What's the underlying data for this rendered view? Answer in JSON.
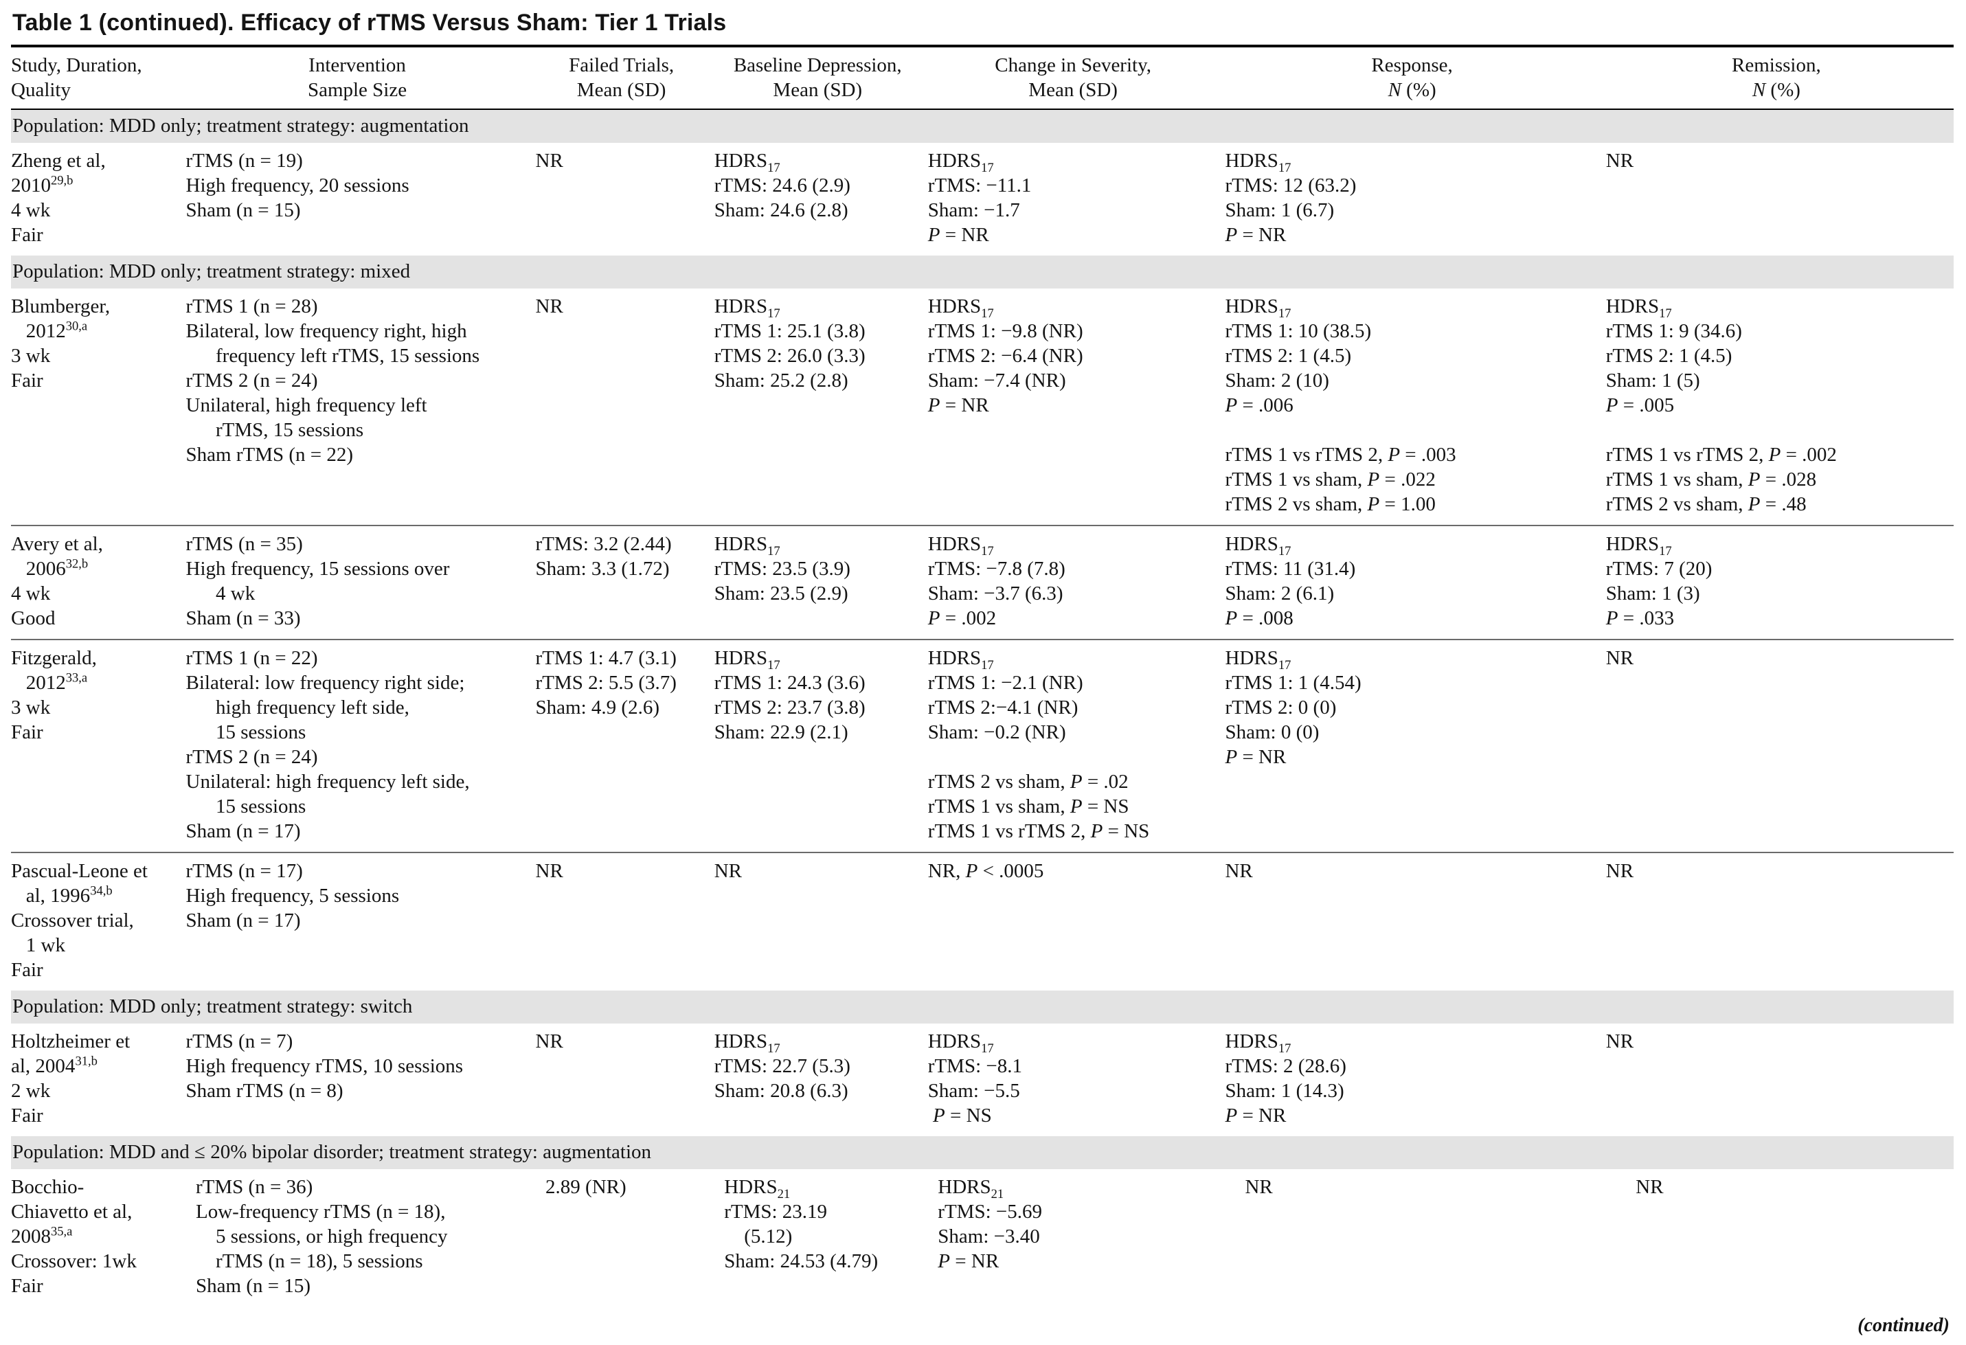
{
  "title": "Table 1 (continued). Efficacy of rTMS Versus Sham: Tier 1 Trials",
  "footer_note": "(continued)",
  "section_bg": "#e3e3e3",
  "columns": [
    {
      "key": "study",
      "lines": [
        "Study, Duration,",
        "Quality"
      ],
      "align": "left",
      "width": "9.0%"
    },
    {
      "key": "intervention",
      "lines": [
        "Intervention",
        "Sample Size"
      ],
      "align": "center",
      "width": "18.0%"
    },
    {
      "key": "failed_trials",
      "lines": [
        "Failed Trials,",
        "Mean (SD)"
      ],
      "align": "center",
      "width": "9.2%"
    },
    {
      "key": "baseline",
      "lines": [
        "Baseline Depression,",
        "Mean (SD)"
      ],
      "align": "center",
      "width": "11.0%"
    },
    {
      "key": "change",
      "lines": [
        "Change in Severity,",
        "Mean (SD)"
      ],
      "align": "center",
      "width": "15.3%"
    },
    {
      "key": "response",
      "lines": [
        "Response,",
        "*N* (%)"
      ],
      "align": "center",
      "width": "19.6%"
    },
    {
      "key": "remission",
      "lines": [
        "Remission,",
        "*N* (%)"
      ],
      "align": "center",
      "width": "17.9%"
    }
  ],
  "rows": [
    {
      "type": "section",
      "label": "Population: MDD only; treatment strategy: augmentation"
    },
    {
      "type": "study",
      "cells": {
        "study": [
          "Zheng et al,",
          "2010^{29,b}",
          "4 wk",
          "Fair"
        ],
        "intervention": [
          "rTMS (n = 19)",
          "High frequency, 20 sessions",
          "Sham (n = 15)"
        ],
        "failed_trials": [
          "NR"
        ],
        "baseline": [
          "HDRS_{17}",
          "rTMS: 24.6 (2.9)",
          "Sham: 24.6 (2.8)"
        ],
        "change": [
          "HDRS_{17}",
          "rTMS: −11.1",
          "Sham: −1.7",
          "*P* = NR"
        ],
        "response": [
          "HDRS_{17}",
          "rTMS: 12 (63.2)",
          "Sham: 1 (6.7)",
          "*P* = NR"
        ],
        "remission": [
          "NR"
        ]
      }
    },
    {
      "type": "section",
      "label": "Population: MDD only; treatment strategy: mixed"
    },
    {
      "type": "study",
      "cells": {
        "study": [
          "Blumberger,",
          "   2012^{30,a}",
          "3 wk",
          "Fair"
        ],
        "intervention": [
          "rTMS 1 (n = 28)",
          "Bilateral, low frequency right, high",
          "      frequency left rTMS, 15 sessions",
          "rTMS 2 (n = 24)",
          "Unilateral, high frequency left",
          "      rTMS, 15 sessions",
          "Sham rTMS (n = 22)"
        ],
        "failed_trials": [
          "NR"
        ],
        "baseline": [
          "HDRS_{17}",
          "rTMS 1: 25.1 (3.8)",
          "rTMS 2: 26.0 (3.3)",
          "Sham: 25.2 (2.8)"
        ],
        "change": [
          "HDRS_{17}",
          "rTMS 1: −9.8 (NR)",
          "rTMS 2: −6.4 (NR)",
          "Sham: −7.4 (NR)",
          "*P* = NR"
        ],
        "response": [
          "HDRS_{17}",
          "rTMS 1: 10 (38.5)",
          "rTMS 2: 1 (4.5)",
          "Sham: 2 (10)",
          "*P* = .006",
          "",
          "rTMS 1 vs rTMS 2, *P* = .003",
          "rTMS 1 vs sham, *P* = .022",
          "rTMS 2 vs sham, *P* = 1.00"
        ],
        "remission": [
          "HDRS_{17}",
          "rTMS 1: 9 (34.6)",
          "rTMS 2: 1 (4.5)",
          "Sham: 1 (5)",
          "*P* = .005",
          "",
          "rTMS 1 vs rTMS 2, *P* = .002",
          "rTMS 1 vs sham, *P* = .028",
          "rTMS 2 vs sham, *P* = .48"
        ]
      }
    },
    {
      "type": "study",
      "cells": {
        "study": [
          "Avery et al,",
          "   2006^{32,b}",
          "4 wk",
          "Good"
        ],
        "intervention": [
          "rTMS (n = 35)",
          "High frequency, 15 sessions over",
          "      4 wk",
          "Sham (n = 33)"
        ],
        "failed_trials": [
          "rTMS: 3.2 (2.44)",
          "Sham: 3.3 (1.72)"
        ],
        "baseline": [
          "HDRS_{17}",
          "rTMS: 23.5 (3.9)",
          "Sham: 23.5 (2.9)"
        ],
        "change": [
          "HDRS_{17}",
          "rTMS: −7.8 (7.8)",
          "Sham: −3.7 (6.3)",
          "*P* = .002"
        ],
        "response": [
          "HDRS_{17}",
          "rTMS: 11 (31.4)",
          "Sham: 2 (6.1)",
          "*P* = .008"
        ],
        "remission": [
          "HDRS_{17}",
          "rTMS: 7 (20)",
          "Sham: 1 (3)",
          "*P* = .033"
        ]
      }
    },
    {
      "type": "study",
      "cells": {
        "study": [
          "Fitzgerald,",
          "   2012^{33,a}",
          "3 wk",
          "Fair"
        ],
        "intervention": [
          "rTMS 1 (n = 22)",
          "Bilateral: low frequency right side;",
          "      high frequency left side,",
          "      15 sessions",
          "rTMS 2 (n = 24)",
          "Unilateral: high frequency left side,",
          "      15 sessions",
          "Sham (n = 17)"
        ],
        "failed_trials": [
          "rTMS 1: 4.7 (3.1)",
          "rTMS 2: 5.5 (3.7)",
          "Sham: 4.9 (2.6)"
        ],
        "baseline": [
          "HDRS_{17}",
          "rTMS 1: 24.3 (3.6)",
          "rTMS 2: 23.7 (3.8)",
          "Sham: 22.9 (2.1)"
        ],
        "change": [
          "HDRS_{17}",
          "rTMS 1: −2.1 (NR)",
          "rTMS 2:−4.1 (NR)",
          "Sham: −0.2 (NR)",
          "",
          "rTMS 2 vs sham, *P* = .02",
          "rTMS 1 vs sham, *P* = NS",
          "rTMS 1 vs rTMS 2, *P* = NS"
        ],
        "response": [
          "HDRS_{17}",
          "rTMS 1: 1 (4.54)",
          "rTMS 2: 0 (0)",
          "Sham: 0 (0)",
          "*P* = NR"
        ],
        "remission": [
          "NR"
        ]
      }
    },
    {
      "type": "study",
      "cells": {
        "study": [
          "Pascual-Leone et",
          "   al, 1996^{34,b}",
          "Crossover trial,",
          "   1 wk",
          "Fair"
        ],
        "intervention": [
          "rTMS (n = 17)",
          "High frequency, 5 sessions",
          "Sham (n = 17)"
        ],
        "failed_trials": [
          "NR"
        ],
        "baseline": [
          "NR"
        ],
        "change": [
          "NR, *P* < .0005"
        ],
        "response": [
          "NR"
        ],
        "remission": [
          "NR"
        ]
      }
    },
    {
      "type": "section",
      "label": "Population: MDD only; treatment strategy: switch"
    },
    {
      "type": "study",
      "cells": {
        "study": [
          "Holtzheimer et",
          "al, 2004^{31,b}",
          "2 wk",
          "Fair"
        ],
        "intervention": [
          "rTMS (n = 7)",
          "High frequency rTMS, 10 sessions",
          "Sham rTMS (n = 8)"
        ],
        "failed_trials": [
          "NR"
        ],
        "baseline": [
          "HDRS_{17}",
          "rTMS: 22.7 (5.3)",
          "Sham: 20.8 (6.3)"
        ],
        "change": [
          "HDRS_{17}",
          "rTMS: −8.1",
          "Sham: −5.5",
          " *P* = NS"
        ],
        "response": [
          "HDRS_{17}",
          "rTMS: 2 (28.6)",
          "Sham: 1 (14.3)",
          "*P* = NR"
        ],
        "remission": [
          "NR"
        ]
      }
    },
    {
      "type": "section",
      "label": "Population: MDD and ≤ 20% bipolar disorder; treatment strategy: augmentation"
    },
    {
      "type": "study",
      "cells": {
        "study": [
          "Bocchio-",
          "Chiavetto et al,",
          "2008^{35,a}",
          "Crossover: 1wk",
          "Fair"
        ],
        "intervention": [
          "  rTMS (n = 36)",
          "  Low-frequency rTMS (n = 18),",
          "      5 sessions, or high frequency",
          "      rTMS (n = 18), 5 sessions",
          "  Sham (n = 15)"
        ],
        "failed_trials": [
          "  2.89 (NR)"
        ],
        "baseline": [
          "  HDRS_{21}",
          "  rTMS: 23.19",
          "      (5.12)",
          "  Sham: 24.53 (4.79)"
        ],
        "change": [
          "  HDRS_{21}",
          "  rTMS: −5.69",
          "  Sham: −3.40",
          "  *P* = NR"
        ],
        "response": [
          "    NR"
        ],
        "remission": [
          "      NR"
        ]
      }
    }
  ]
}
